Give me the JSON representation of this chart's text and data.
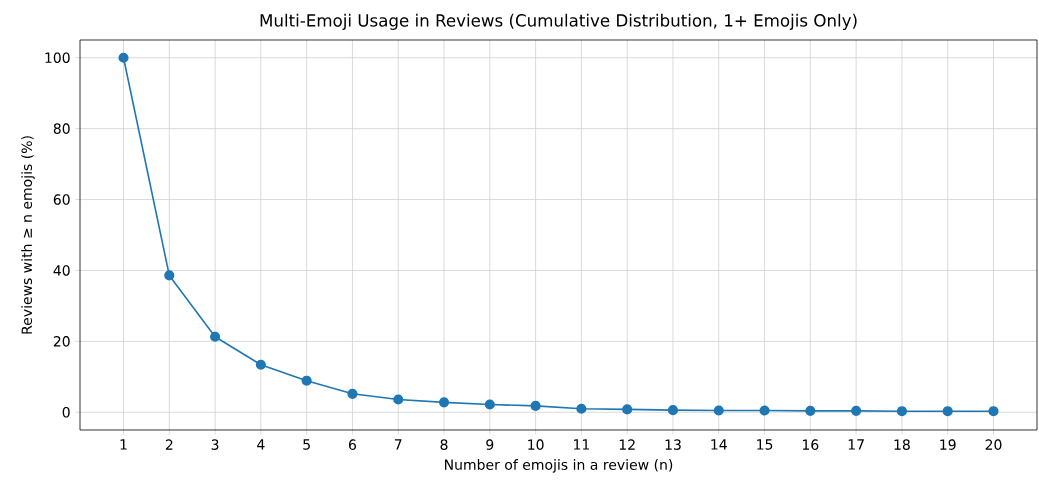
{
  "chart_data": {
    "type": "line",
    "title": "Multi-Emoji Usage in Reviews (Cumulative Distribution, 1+ Emojis Only)",
    "xlabel": "Number of emojis in a review (n)",
    "ylabel": "Reviews with ≥ n emojis (%)",
    "x": [
      1,
      2,
      3,
      4,
      5,
      6,
      7,
      8,
      9,
      10,
      11,
      12,
      13,
      14,
      15,
      16,
      17,
      18,
      19,
      20
    ],
    "series": [
      {
        "color": "#1f77b4",
        "values": [
          100,
          38.6,
          21.3,
          13.4,
          8.9,
          5.2,
          3.6,
          2.8,
          2.2,
          1.8,
          1.0,
          0.8,
          0.6,
          0.5,
          0.5,
          0.4,
          0.4,
          0.3,
          0.3,
          0.3
        ]
      }
    ],
    "xlim": [
      0.05,
      20.95
    ],
    "ylim": [
      -5,
      105
    ],
    "xticks": [
      1,
      2,
      3,
      4,
      5,
      6,
      7,
      8,
      9,
      10,
      11,
      12,
      13,
      14,
      15,
      16,
      17,
      18,
      19,
      20
    ],
    "yticks": [
      0,
      20,
      40,
      60,
      80,
      100
    ],
    "grid": true,
    "marker": "circle",
    "line_style": "solid"
  }
}
